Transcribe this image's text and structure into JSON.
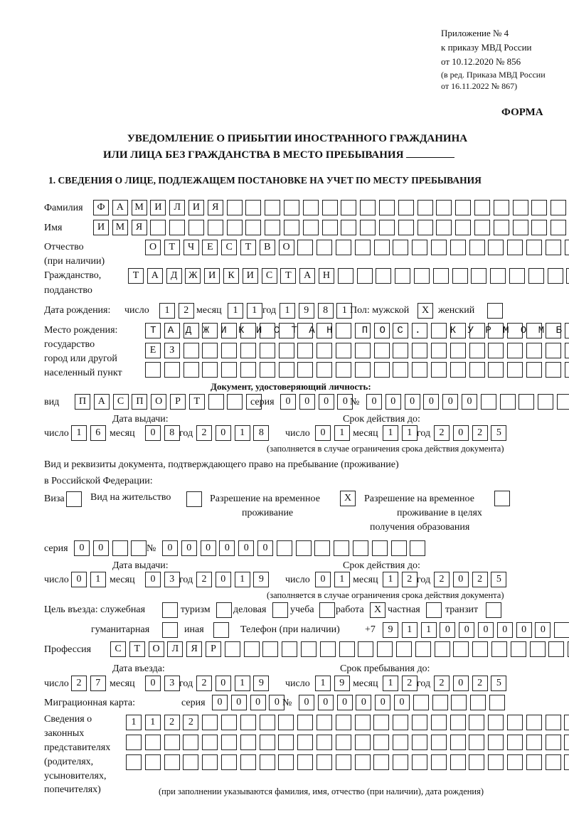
{
  "header": {
    "appendix": [
      "Приложение № 4",
      "к приказу МВД России",
      "от 10.12.2020 № 856"
    ],
    "revision": [
      "(в ред. Приказа МВД России",
      "от 16.11.2022 № 867)"
    ],
    "forma": "ФОРМА",
    "title1": "УВЕДОМЛЕНИЕ О ПРИБЫТИИ ИНОСТРАННОГО ГРАЖДАНИНА",
    "title2": "ИЛИ ЛИЦА БЕЗ ГРАЖДАНСТВА В МЕСТО ПРЕБЫВАНИЯ",
    "section1": "1. СВЕДЕНИЯ О ЛИЦЕ, ПОДЛЕЖАЩЕМ ПОСТАНОВКЕ НА УЧЕТ ПО МЕСТУ ПРЕБЫВАНИЯ"
  },
  "person": {
    "surname": {
      "label": "Фамилия",
      "value": "ФАМИЛИЯ"
    },
    "name": {
      "label": "Имя",
      "value": "ИМЯ"
    },
    "patronymic": {
      "label1": "Отчество",
      "label2": "(при наличии)",
      "value": "ОТЧЕСТВО"
    },
    "citizenship": {
      "label1": "Гражданство,",
      "label2": "подданство",
      "value": "ТАДЖИКИСТАН"
    },
    "birth": {
      "label": "Дата рождения:",
      "day_label": "число",
      "month_label": "месяц",
      "year_label": "год",
      "day": "12",
      "month": "11",
      "year": "1981",
      "sex_label": "Пол: мужской",
      "male": "X",
      "female_label": "женский",
      "female": ""
    },
    "birthplace": {
      "labels": [
        "Место рождения:",
        "государство",
        "город или другой",
        "населенный пункт"
      ],
      "line1": "ТАДЖИКИСТАН ПОС. КУРМОМБ",
      "line2": "ЕЗ",
      "line3": ""
    }
  },
  "id_doc": {
    "heading": "Документ, удостоверяющий личность:",
    "kind_label": "вид",
    "kind": "ПАСПОРТ",
    "series_label": "серия",
    "series": "0000",
    "number_label": "№",
    "number": "000000",
    "issue_label": "Дата выдачи:",
    "valid_label": "Срок действия до:",
    "day_label": "число",
    "month_label": "месяц",
    "year_label": "год",
    "issue": {
      "day": "16",
      "month": "08",
      "year": "2018"
    },
    "valid": {
      "day": "01",
      "month": "11",
      "year": "2025"
    },
    "note": "(заполняется в случае ограничения срока действия документа)"
  },
  "stay_doc": {
    "heading1": "Вид и реквизиты документа, подтверждающего право на пребывание (проживание)",
    "heading2": "в Российской Федерации:",
    "visa_label": "Виза",
    "visa": "",
    "residence_label": "Вид на жительство",
    "residence": "",
    "temp_label1": "Разрешение на временное",
    "temp_label2": "проживание",
    "temp": "X",
    "edu_label1": "Разрешение на временное",
    "edu_label2": "проживание в целях",
    "edu_label3": "получения образования",
    "edu": "",
    "series_label": "серия",
    "series": "00",
    "number_label": "№",
    "number": "000000",
    "issue_label": "Дата выдачи:",
    "valid_label": "Срок действия до:",
    "day_label": "число",
    "month_label": "месяц",
    "year_label": "год",
    "issue": {
      "day": "01",
      "month": "03",
      "year": "2019"
    },
    "valid": {
      "day": "01",
      "month": "12",
      "year": "2025"
    },
    "note": "(заполняется в случае ограничения срока действия документа)"
  },
  "purpose": {
    "label": "Цель въезда: служебная",
    "service": "",
    "tourism_label": "туризм",
    "tourism": "",
    "business_label": "деловая",
    "business": "",
    "study_label": "учеба",
    "study": "",
    "work_label": "работа",
    "work": "X",
    "private_label": "частная",
    "private": "",
    "transit_label": "транзит",
    "transit": "",
    "humanitarian_label": "гуманитарная",
    "humanitarian": "",
    "other_label": "иная",
    "other": ""
  },
  "phone": {
    "label": "Телефон (при наличии)",
    "prefix": "+7",
    "value": "911000000"
  },
  "profession": {
    "label": "Профессия",
    "value": "СТОЛЯР"
  },
  "entry": {
    "entry_label": "Дата въезда:",
    "stay_label": "Срок пребывания до:",
    "day_label": "число",
    "month_label": "месяц",
    "year_label": "год",
    "entry": {
      "day": "27",
      "month": "03",
      "year": "2019"
    },
    "stay": {
      "day": "19",
      "month": "12",
      "year": "2025"
    }
  },
  "migration_card": {
    "label": "Миграционная карта:",
    "series_label": "серия",
    "series": "0000",
    "number_label": "№",
    "number": "000000"
  },
  "representatives": {
    "labels": [
      "Сведения о",
      "законных",
      "представителях",
      "(родителях,",
      "усыновителях,",
      "попечителях)"
    ],
    "line1": "1122",
    "line2": "",
    "line3": "",
    "note": "(при заполнении указываются фамилия, имя, отчество (при наличии), дата рождения)"
  }
}
